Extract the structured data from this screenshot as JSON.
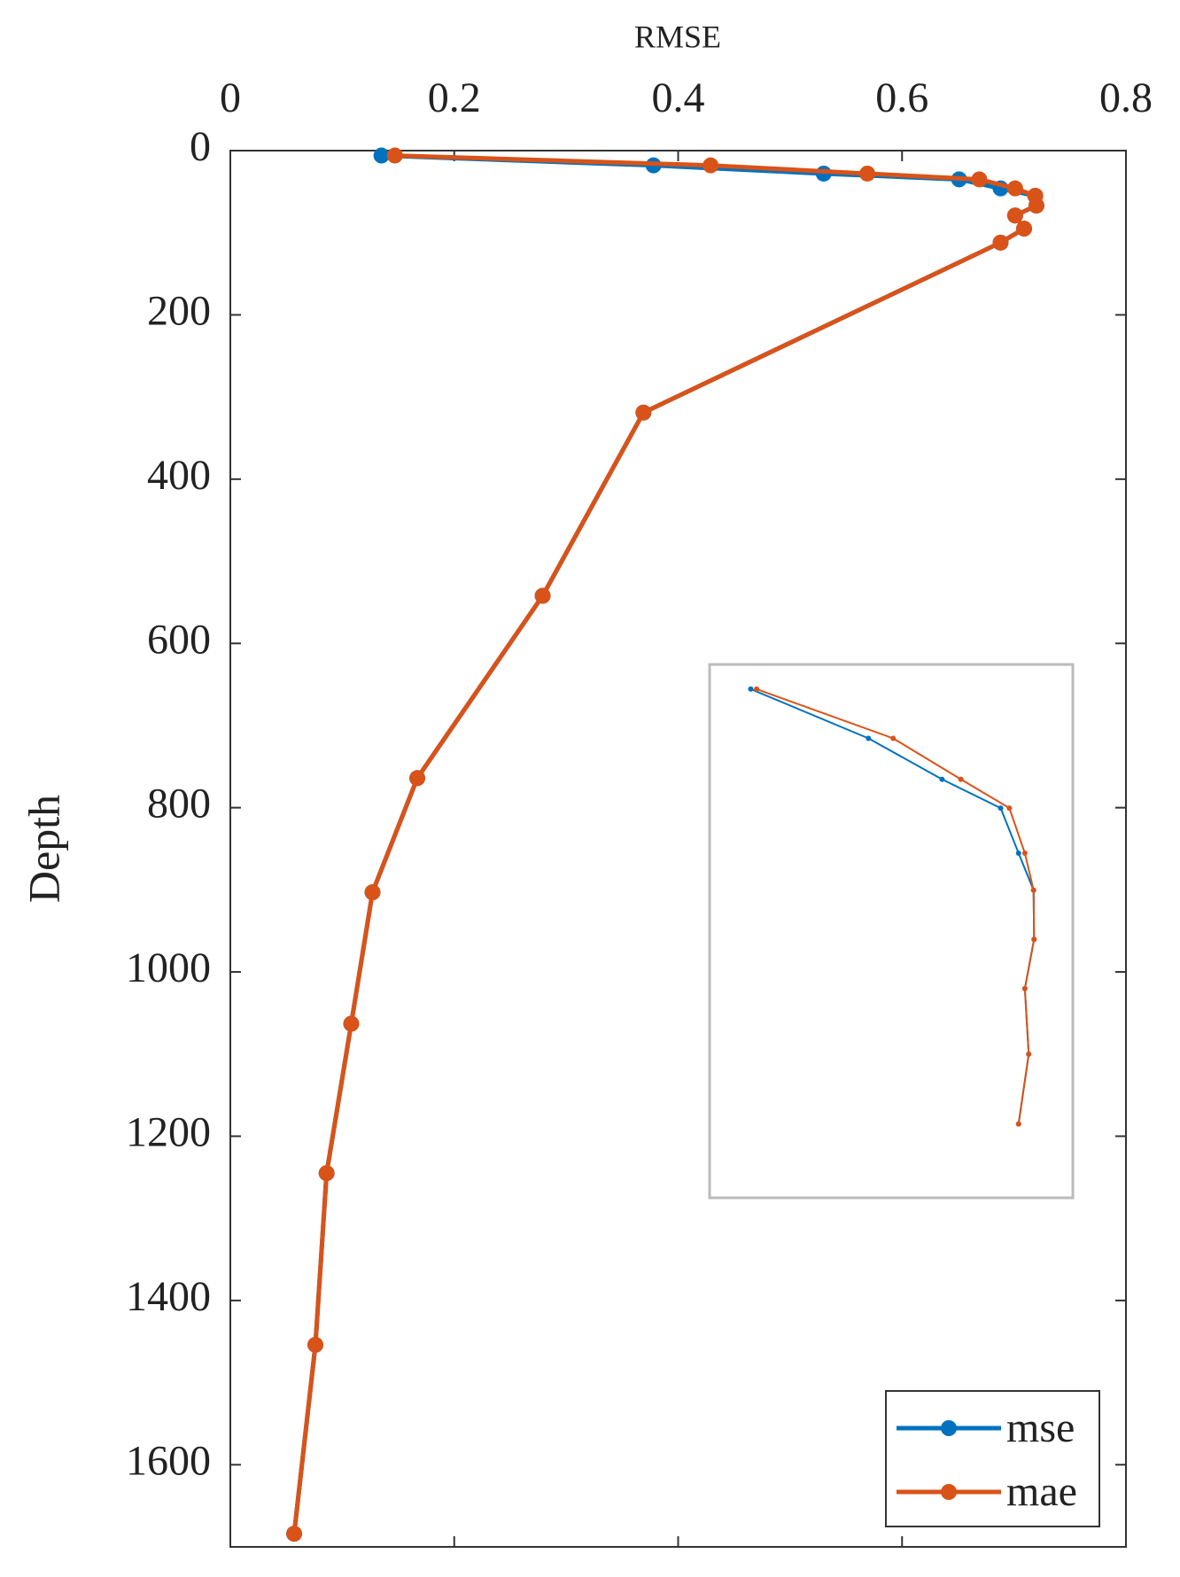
{
  "chart_data": {
    "type": "line",
    "x_label": "RMSE",
    "y_label": "Depth",
    "y": [
      6,
      18,
      28,
      35,
      46,
      55,
      67,
      79,
      95,
      112,
      319,
      542,
      764,
      903,
      1063,
      1245,
      1454,
      1684
    ],
    "series": [
      {
        "name": "mse",
        "color": "#0072bd",
        "values": [
          0.135,
          0.378,
          0.53,
          0.651,
          0.688,
          0.719,
          0.72,
          0.701,
          0.709,
          0.688,
          0.369,
          0.279,
          0.167,
          0.127,
          0.108,
          0.086,
          0.076,
          0.057
        ]
      },
      {
        "name": "mae",
        "color": "#d95319",
        "values": [
          0.147,
          0.429,
          0.569,
          0.669,
          0.701,
          0.719,
          0.72,
          0.701,
          0.709,
          0.688,
          0.369,
          0.279,
          0.167,
          0.127,
          0.108,
          0.086,
          0.076,
          0.057
        ]
      }
    ],
    "xlim": [
      0,
      0.8
    ],
    "xticks": [
      0,
      0.2,
      0.4,
      0.6,
      0.8
    ],
    "ylim": [
      0,
      1700
    ],
    "yticks": [
      0,
      200,
      400,
      600,
      800,
      1000,
      1200,
      1400,
      1600
    ],
    "y_inverted": true,
    "x_axis_position": "top",
    "legend": "bottom-right",
    "inset": {
      "xlim": [
        0.05,
        0.8
      ],
      "ylim": [
        0,
        130
      ]
    }
  }
}
